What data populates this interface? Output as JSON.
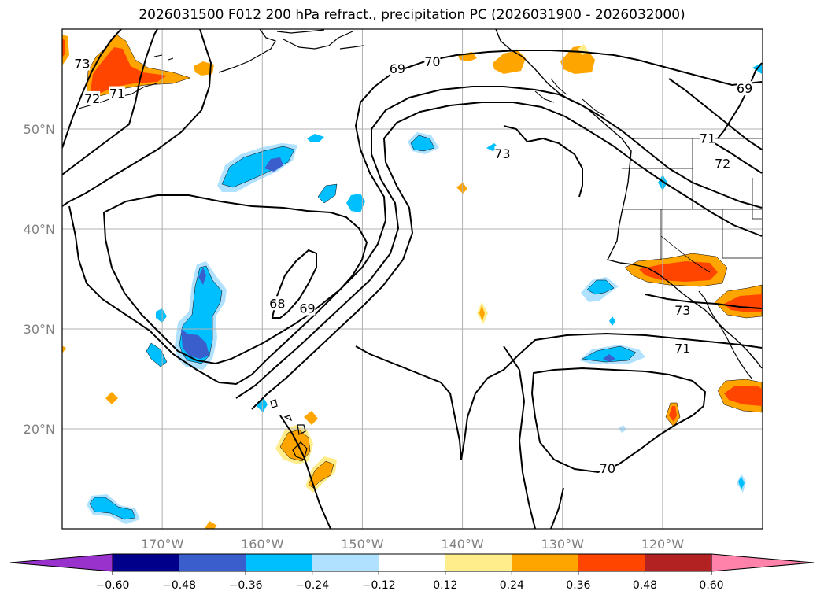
{
  "title": "2026031500 F012 200 hPa refract., precipitation PC (2026031900 - 2026032000)",
  "colors": {
    "frame": "#000000",
    "grid": "#b0b0b0",
    "contour": "#000000",
    "neg_060_over": "#9932cc",
    "neg_048_060": "#00008b",
    "neg_036_048": "#3a5fcd",
    "neg_024_036": "#00bfff",
    "neg_012_024": "#b0e2ff",
    "pos_012_024": "#ffec8b",
    "pos_024_036": "#ffa500",
    "pos_036_048": "#ff4500",
    "pos_048_060": "#b22222",
    "pos_060_over": "#ff82ab"
  },
  "map": {
    "projection": "PlateCarree",
    "lon_range": [
      -180,
      -110
    ],
    "lat_range": [
      10,
      60
    ],
    "lon_ticks": [
      {
        "lon": -170,
        "label": "170°W"
      },
      {
        "lon": -160,
        "label": "160°W"
      },
      {
        "lon": -150,
        "label": "150°W"
      },
      {
        "lon": -140,
        "label": "140°W"
      },
      {
        "lon": -130,
        "label": "130°W"
      },
      {
        "lon": -120,
        "label": "120°W"
      }
    ],
    "lat_ticks": [
      {
        "lat": 50,
        "label": "50°N"
      },
      {
        "lat": 40,
        "label": "40°N"
      },
      {
        "lat": 30,
        "label": "30°N"
      },
      {
        "lat": 20,
        "label": "20°N"
      }
    ],
    "contour_labels": [
      {
        "text": "73",
        "lon": -178,
        "lat": 56.5
      },
      {
        "text": "72",
        "lon": -177,
        "lat": 53
      },
      {
        "text": "71",
        "lon": -174.5,
        "lat": 53.5
      },
      {
        "text": "69",
        "lon": -146.5,
        "lat": 56
      },
      {
        "text": "70",
        "lon": -143,
        "lat": 56.7
      },
      {
        "text": "73",
        "lon": -136,
        "lat": 47.5
      },
      {
        "text": "69",
        "lon": -111.8,
        "lat": 54
      },
      {
        "text": "71",
        "lon": -115.5,
        "lat": 49
      },
      {
        "text": "72",
        "lon": -114,
        "lat": 46.5
      },
      {
        "text": "68",
        "lon": -158.5,
        "lat": 32.5
      },
      {
        "text": "69",
        "lon": -155.5,
        "lat": 32
      },
      {
        "text": "73",
        "lon": -118,
        "lat": 31.8
      },
      {
        "text": "71",
        "lon": -118,
        "lat": 28
      },
      {
        "text": "70",
        "lon": -125.5,
        "lat": 16
      }
    ]
  },
  "colorbar": {
    "levels": [
      "−0.60",
      "−0.48",
      "−0.36",
      "−0.24",
      "−0.12",
      "0.12",
      "0.24",
      "0.36",
      "0.48",
      "0.60"
    ],
    "extend": "both"
  }
}
